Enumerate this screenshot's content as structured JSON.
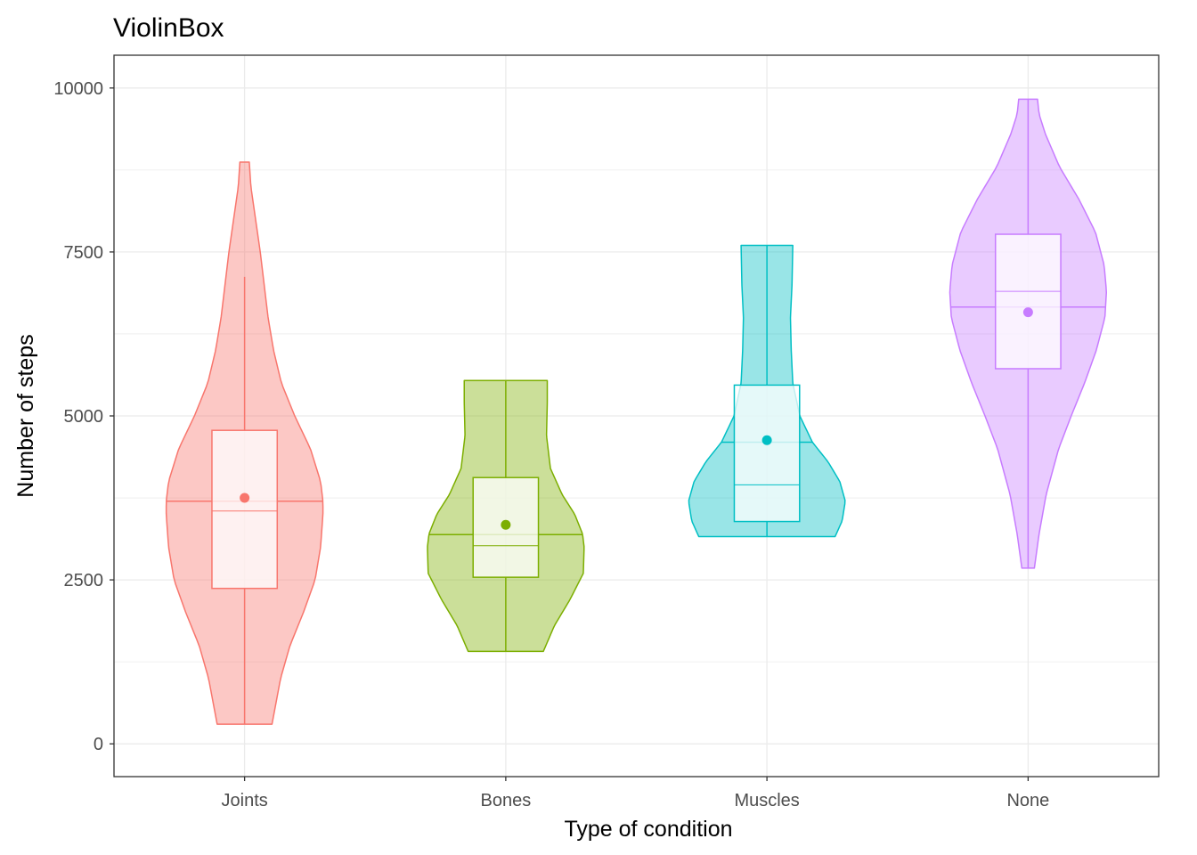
{
  "chart_data": {
    "type": "violin",
    "title": "ViolinBox",
    "xlabel": "Type of condition",
    "ylabel": "Number of steps",
    "ylim": [
      -500,
      10500
    ],
    "yticks": [
      0,
      2500,
      5000,
      7500,
      10000
    ],
    "grid": true,
    "legend": "none",
    "categories": [
      "Joints",
      "Bones",
      "Muscles",
      "None"
    ],
    "groups": [
      {
        "name": "Joints",
        "color": "#F8766D",
        "min": 300,
        "max": 8870,
        "q1": 2370,
        "median": 3550,
        "q3": 4780,
        "mean": 3750,
        "whisker_low": 300,
        "whisker_high": 7120,
        "violin_median": 3700,
        "density": [
          [
            300,
            0.35
          ],
          [
            1000,
            0.46
          ],
          [
            1500,
            0.58
          ],
          [
            2000,
            0.75
          ],
          [
            2500,
            0.9
          ],
          [
            3000,
            0.97
          ],
          [
            3500,
            1.0
          ],
          [
            3700,
            1.0
          ],
          [
            4000,
            0.97
          ],
          [
            4500,
            0.84
          ],
          [
            5000,
            0.64
          ],
          [
            5500,
            0.47
          ],
          [
            6000,
            0.37
          ],
          [
            6500,
            0.3
          ],
          [
            7000,
            0.25
          ],
          [
            7500,
            0.2
          ],
          [
            8000,
            0.14
          ],
          [
            8500,
            0.08
          ],
          [
            8870,
            0.06
          ]
        ]
      },
      {
        "name": "Bones",
        "color": "#7CAE00",
        "min": 1410,
        "max": 5540,
        "q1": 2540,
        "median": 3020,
        "q3": 4060,
        "mean": 3340,
        "whisker_low": 1410,
        "whisker_high": 5540,
        "violin_median": 3190,
        "density": [
          [
            1410,
            0.48
          ],
          [
            1800,
            0.62
          ],
          [
            2200,
            0.82
          ],
          [
            2600,
            0.99
          ],
          [
            3000,
            1.0
          ],
          [
            3200,
            0.98
          ],
          [
            3500,
            0.88
          ],
          [
            3800,
            0.72
          ],
          [
            4200,
            0.57
          ],
          [
            4700,
            0.52
          ],
          [
            5200,
            0.53
          ],
          [
            5540,
            0.53
          ]
        ]
      },
      {
        "name": "Muscles",
        "color": "#00BFC4",
        "min": 3160,
        "max": 7600,
        "q1": 3390,
        "median": 3950,
        "q3": 5470,
        "mean": 4630,
        "whisker_low": 3160,
        "whisker_high": 7600,
        "violin_median": 4600,
        "density": [
          [
            3160,
            0.87
          ],
          [
            3400,
            0.96
          ],
          [
            3700,
            1.0
          ],
          [
            4000,
            0.93
          ],
          [
            4300,
            0.78
          ],
          [
            4600,
            0.58
          ],
          [
            5000,
            0.42
          ],
          [
            5500,
            0.33
          ],
          [
            6000,
            0.31
          ],
          [
            6500,
            0.3
          ],
          [
            7000,
            0.32
          ],
          [
            7600,
            0.33
          ]
        ]
      },
      {
        "name": "None",
        "color": "#C77CFF",
        "min": 2680,
        "max": 9830,
        "q1": 5720,
        "median": 6900,
        "q3": 7770,
        "mean": 6580,
        "whisker_low": 2680,
        "whisker_high": 9830,
        "violin_median": 6660,
        "density": [
          [
            2680,
            0.08
          ],
          [
            3200,
            0.14
          ],
          [
            3800,
            0.23
          ],
          [
            4500,
            0.39
          ],
          [
            5000,
            0.55
          ],
          [
            5500,
            0.72
          ],
          [
            6000,
            0.87
          ],
          [
            6500,
            0.98
          ],
          [
            6900,
            1.0
          ],
          [
            7300,
            0.97
          ],
          [
            7800,
            0.86
          ],
          [
            8300,
            0.65
          ],
          [
            8800,
            0.4
          ],
          [
            9300,
            0.22
          ],
          [
            9600,
            0.14
          ],
          [
            9830,
            0.12
          ]
        ]
      }
    ]
  }
}
